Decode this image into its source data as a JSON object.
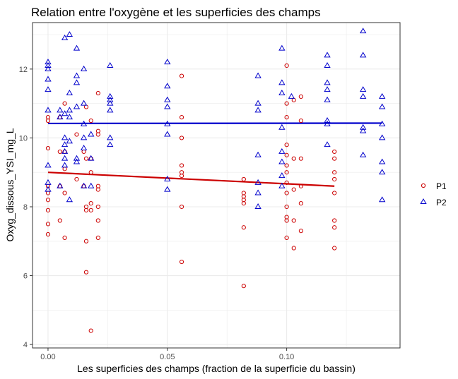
{
  "chart_data": {
    "type": "scatter",
    "title": "Relation entre l'oxygène et les superficies des champs",
    "xlabel": "Les superficies des champs (fraction de la superficie du bassin)",
    "ylabel": "Oxyg_dissous_YSI_mg_L",
    "xlim": [
      -0.0065,
      0.1475
    ],
    "ylim": [
      3.9,
      13.35
    ],
    "x_ticks": [
      0.0,
      0.05,
      0.1
    ],
    "x_tick_labels": [
      "0.00",
      "0.05",
      "0.10"
    ],
    "y_ticks": [
      4,
      6,
      8,
      10,
      12
    ],
    "y_tick_labels": [
      "4",
      "6",
      "8",
      "10",
      "12"
    ],
    "grid": true,
    "legend_position": "right",
    "series": [
      {
        "name": "P1",
        "marker": "circle",
        "color": "#cc0000",
        "trend": [
          [
            0.0,
            9.0
          ],
          [
            0.12,
            8.6
          ]
        ],
        "points": [
          [
            0.0,
            7.2
          ],
          [
            0.0,
            7.5
          ],
          [
            0.0,
            7.9
          ],
          [
            0.0,
            8.2
          ],
          [
            0.0,
            8.4
          ],
          [
            0.0,
            8.6
          ],
          [
            0.0,
            9.7
          ],
          [
            0.0,
            10.5
          ],
          [
            0.0,
            10.6
          ],
          [
            0.005,
            7.6
          ],
          [
            0.005,
            8.6
          ],
          [
            0.005,
            9.6
          ],
          [
            0.005,
            10.6
          ],
          [
            0.007,
            7.1
          ],
          [
            0.007,
            8.4
          ],
          [
            0.007,
            9.1
          ],
          [
            0.007,
            9.6
          ],
          [
            0.007,
            11.0
          ],
          [
            0.012,
            8.8
          ],
          [
            0.012,
            10.1
          ],
          [
            0.015,
            8.6
          ],
          [
            0.015,
            9.6
          ],
          [
            0.016,
            6.1
          ],
          [
            0.016,
            7.0
          ],
          [
            0.016,
            7.9
          ],
          [
            0.016,
            8.0
          ],
          [
            0.016,
            9.4
          ],
          [
            0.016,
            10.9
          ],
          [
            0.018,
            4.4
          ],
          [
            0.018,
            7.9
          ],
          [
            0.018,
            8.1
          ],
          [
            0.018,
            9.0
          ],
          [
            0.018,
            9.4
          ],
          [
            0.018,
            10.5
          ],
          [
            0.021,
            7.1
          ],
          [
            0.021,
            7.6
          ],
          [
            0.021,
            8.0
          ],
          [
            0.021,
            8.5
          ],
          [
            0.021,
            8.6
          ],
          [
            0.021,
            10.1
          ],
          [
            0.021,
            10.2
          ],
          [
            0.021,
            11.3
          ],
          [
            0.056,
            6.4
          ],
          [
            0.056,
            8.0
          ],
          [
            0.056,
            8.9
          ],
          [
            0.056,
            9.0
          ],
          [
            0.056,
            9.2
          ],
          [
            0.056,
            10.0
          ],
          [
            0.056,
            10.6
          ],
          [
            0.056,
            11.8
          ],
          [
            0.082,
            5.7
          ],
          [
            0.082,
            7.4
          ],
          [
            0.082,
            8.1
          ],
          [
            0.082,
            8.2
          ],
          [
            0.082,
            8.3
          ],
          [
            0.082,
            8.4
          ],
          [
            0.082,
            8.8
          ],
          [
            0.1,
            7.1
          ],
          [
            0.1,
            7.6
          ],
          [
            0.1,
            7.7
          ],
          [
            0.1,
            8.0
          ],
          [
            0.1,
            8.4
          ],
          [
            0.1,
            8.7
          ],
          [
            0.1,
            9.0
          ],
          [
            0.1,
            9.2
          ],
          [
            0.1,
            9.5
          ],
          [
            0.1,
            9.8
          ],
          [
            0.1,
            10.6
          ],
          [
            0.1,
            11.0
          ],
          [
            0.1,
            12.1
          ],
          [
            0.103,
            6.8
          ],
          [
            0.103,
            7.6
          ],
          [
            0.103,
            8.5
          ],
          [
            0.103,
            9.4
          ],
          [
            0.103,
            11.1
          ],
          [
            0.106,
            7.3
          ],
          [
            0.106,
            8.1
          ],
          [
            0.106,
            8.6
          ],
          [
            0.106,
            9.4
          ],
          [
            0.106,
            10.5
          ],
          [
            0.106,
            11.2
          ],
          [
            0.12,
            6.8
          ],
          [
            0.12,
            7.4
          ],
          [
            0.12,
            7.6
          ],
          [
            0.12,
            8.4
          ],
          [
            0.12,
            8.8
          ],
          [
            0.12,
            9.0
          ],
          [
            0.12,
            9.4
          ],
          [
            0.12,
            9.6
          ]
        ]
      },
      {
        "name": "P2",
        "marker": "triangle",
        "color": "#0000cc",
        "trend": [
          [
            0.0,
            10.42
          ],
          [
            0.14,
            10.43
          ]
        ],
        "points": [
          [
            0.0,
            8.5
          ],
          [
            0.0,
            8.7
          ],
          [
            0.0,
            9.2
          ],
          [
            0.0,
            10.8
          ],
          [
            0.0,
            11.4
          ],
          [
            0.0,
            11.7
          ],
          [
            0.0,
            12.0
          ],
          [
            0.0,
            12.1
          ],
          [
            0.0,
            12.2
          ],
          [
            0.005,
            8.6
          ],
          [
            0.005,
            10.6
          ],
          [
            0.005,
            10.8
          ],
          [
            0.007,
            9.2
          ],
          [
            0.007,
            9.4
          ],
          [
            0.007,
            9.6
          ],
          [
            0.007,
            9.8
          ],
          [
            0.007,
            10.0
          ],
          [
            0.007,
            10.7
          ],
          [
            0.007,
            12.9
          ],
          [
            0.009,
            8.2
          ],
          [
            0.009,
            9.9
          ],
          [
            0.009,
            10.6
          ],
          [
            0.009,
            10.8
          ],
          [
            0.009,
            11.3
          ],
          [
            0.009,
            13.0
          ],
          [
            0.012,
            9.3
          ],
          [
            0.012,
            9.4
          ],
          [
            0.012,
            10.9
          ],
          [
            0.012,
            11.6
          ],
          [
            0.012,
            11.8
          ],
          [
            0.012,
            12.6
          ],
          [
            0.015,
            8.6
          ],
          [
            0.015,
            9.7
          ],
          [
            0.015,
            10.0
          ],
          [
            0.015,
            10.4
          ],
          [
            0.015,
            11.0
          ],
          [
            0.015,
            12.0
          ],
          [
            0.018,
            8.6
          ],
          [
            0.018,
            9.4
          ],
          [
            0.018,
            10.1
          ],
          [
            0.026,
            9.8
          ],
          [
            0.026,
            10.0
          ],
          [
            0.026,
            10.8
          ],
          [
            0.026,
            11.0
          ],
          [
            0.026,
            11.1
          ],
          [
            0.026,
            11.2
          ],
          [
            0.026,
            12.1
          ],
          [
            0.05,
            8.5
          ],
          [
            0.05,
            8.8
          ],
          [
            0.05,
            10.1
          ],
          [
            0.05,
            10.4
          ],
          [
            0.05,
            10.9
          ],
          [
            0.05,
            11.1
          ],
          [
            0.05,
            11.5
          ],
          [
            0.05,
            12.2
          ],
          [
            0.088,
            8.0
          ],
          [
            0.088,
            8.4
          ],
          [
            0.088,
            8.7
          ],
          [
            0.088,
            9.5
          ],
          [
            0.088,
            10.8
          ],
          [
            0.088,
            11.0
          ],
          [
            0.088,
            11.8
          ],
          [
            0.098,
            8.6
          ],
          [
            0.098,
            8.9
          ],
          [
            0.098,
            9.3
          ],
          [
            0.098,
            9.6
          ],
          [
            0.098,
            10.3
          ],
          [
            0.098,
            11.3
          ],
          [
            0.098,
            11.6
          ],
          [
            0.098,
            12.6
          ],
          [
            0.102,
            11.2
          ],
          [
            0.117,
            9.8
          ],
          [
            0.117,
            10.4
          ],
          [
            0.117,
            10.5
          ],
          [
            0.117,
            11.1
          ],
          [
            0.117,
            11.4
          ],
          [
            0.117,
            11.6
          ],
          [
            0.117,
            12.1
          ],
          [
            0.117,
            12.4
          ],
          [
            0.132,
            9.5
          ],
          [
            0.132,
            10.2
          ],
          [
            0.132,
            10.3
          ],
          [
            0.132,
            11.2
          ],
          [
            0.132,
            11.4
          ],
          [
            0.132,
            12.4
          ],
          [
            0.132,
            13.1
          ],
          [
            0.14,
            8.2
          ],
          [
            0.14,
            9.0
          ],
          [
            0.14,
            9.3
          ],
          [
            0.14,
            10.0
          ],
          [
            0.14,
            10.4
          ],
          [
            0.14,
            10.9
          ],
          [
            0.14,
            11.2
          ]
        ]
      }
    ]
  }
}
